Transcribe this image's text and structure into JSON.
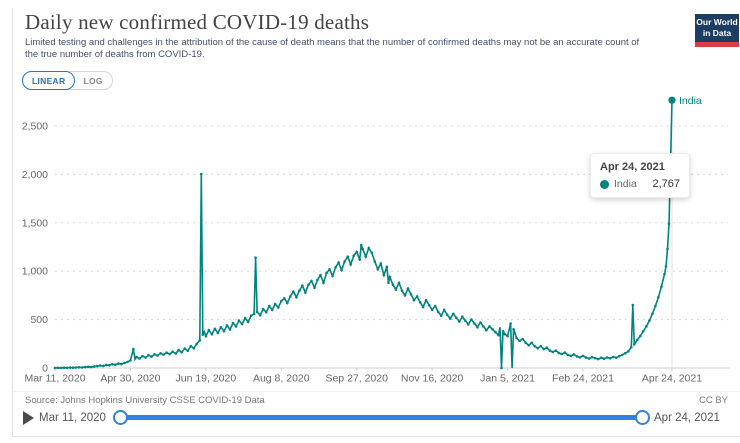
{
  "header": {
    "title": "Daily new confirmed COVID-19 deaths",
    "subtitle": "Limited testing and challenges in the attribution of the cause of death means that the number of confirmed deaths may not be an accurate count of the true number of deaths from COVID-19.",
    "logo": {
      "line1": "Our World",
      "line2": "in Data"
    }
  },
  "toolbar": {
    "linear_label": "LINEAR",
    "log_label": "LOG",
    "selected": "LINEAR"
  },
  "tooltip": {
    "date": "Apr 24, 2021",
    "series": "India",
    "value": "2,767"
  },
  "end_label": "India",
  "footer": {
    "source": "Source: Johns Hopkins University CSSE COVID-19 Data",
    "license": "CC BY"
  },
  "timeline": {
    "start_label": "Mar 11, 2020",
    "end_label": "Apr 24, 2021"
  },
  "colors": {
    "series": "#00847e",
    "accent_blue": "#2573ba",
    "slider_blue": "#2f80e7",
    "logo_navy": "#1d3d63",
    "logo_red": "#dc3e43",
    "grid": "#d8d8d8",
    "axis": "#cccccc",
    "tick_text": "#666666"
  },
  "chart_data": {
    "type": "line",
    "title": "Daily new confirmed COVID-19 deaths",
    "xlabel": "",
    "ylabel": "",
    "x_start_date": "Mar 11, 2020",
    "x_end_date": "Apr 24, 2021",
    "xlim_days": [
      0,
      409
    ],
    "ylim": [
      0,
      2500
    ],
    "grid": true,
    "yticks": [
      {
        "v": 0,
        "label": "0"
      },
      {
        "v": 500,
        "label": "500"
      },
      {
        "v": 1000,
        "label": "1,000"
      },
      {
        "v": 1500,
        "label": "1,500"
      },
      {
        "v": 2000,
        "label": "2,000"
      },
      {
        "v": 2500,
        "label": "2,500"
      }
    ],
    "xticks": [
      {
        "day": 0,
        "label": "Mar 11, 2020"
      },
      {
        "day": 50,
        "label": "Apr 30, 2020"
      },
      {
        "day": 100,
        "label": "Jun 19, 2020"
      },
      {
        "day": 150,
        "label": "Aug 8, 2020"
      },
      {
        "day": 200,
        "label": "Sep 27, 2020"
      },
      {
        "day": 250,
        "label": "Nov 16, 2020"
      },
      {
        "day": 300,
        "label": "Jan 5, 2021"
      },
      {
        "day": 350,
        "label": "Feb 24, 2021"
      },
      {
        "day": 409,
        "label": "Apr 24, 2021"
      }
    ],
    "hover_day": 409,
    "series": [
      {
        "name": "India",
        "color": "#00847e",
        "end_value": 2767,
        "notable_points": [
          {
            "date": "Jun 16, 2020",
            "day": 97,
            "value": 2003
          },
          {
            "date": "Jul 22, 2020",
            "day": 133,
            "value": 1140
          },
          {
            "date": "Sep 18, 2020",
            "day": 203,
            "value": 1270
          },
          {
            "date": "Apr 24, 2021",
            "day": 409,
            "value": 2767
          }
        ],
        "points": [
          [
            0,
            1
          ],
          [
            2,
            2
          ],
          [
            4,
            1
          ],
          [
            6,
            3
          ],
          [
            8,
            2
          ],
          [
            10,
            4
          ],
          [
            12,
            3
          ],
          [
            14,
            5
          ],
          [
            16,
            7
          ],
          [
            18,
            6
          ],
          [
            20,
            9
          ],
          [
            22,
            12
          ],
          [
            24,
            10
          ],
          [
            26,
            15
          ],
          [
            28,
            20
          ],
          [
            30,
            26
          ],
          [
            32,
            22
          ],
          [
            34,
            32
          ],
          [
            36,
            28
          ],
          [
            38,
            38
          ],
          [
            40,
            34
          ],
          [
            42,
            45
          ],
          [
            44,
            40
          ],
          [
            46,
            52
          ],
          [
            48,
            62
          ],
          [
            50,
            78
          ],
          [
            52,
            195
          ],
          [
            53,
            90
          ],
          [
            54,
            115
          ],
          [
            56,
            98
          ],
          [
            58,
            122
          ],
          [
            60,
            108
          ],
          [
            62,
            132
          ],
          [
            64,
            118
          ],
          [
            66,
            142
          ],
          [
            68,
            128
          ],
          [
            70,
            152
          ],
          [
            72,
            138
          ],
          [
            74,
            158
          ],
          [
            76,
            144
          ],
          [
            78,
            168
          ],
          [
            80,
            150
          ],
          [
            82,
            185
          ],
          [
            84,
            162
          ],
          [
            86,
            200
          ],
          [
            88,
            178
          ],
          [
            90,
            225
          ],
          [
            92,
            205
          ],
          [
            94,
            250
          ],
          [
            96,
            285
          ],
          [
            97,
            2003
          ],
          [
            98,
            345
          ],
          [
            99,
            375
          ],
          [
            100,
            330
          ],
          [
            102,
            390
          ],
          [
            104,
            348
          ],
          [
            106,
            405
          ],
          [
            108,
            362
          ],
          [
            110,
            420
          ],
          [
            112,
            380
          ],
          [
            114,
            440
          ],
          [
            116,
            398
          ],
          [
            118,
            465
          ],
          [
            120,
            430
          ],
          [
            122,
            490
          ],
          [
            124,
            455
          ],
          [
            126,
            515
          ],
          [
            128,
            475
          ],
          [
            130,
            540
          ],
          [
            132,
            560
          ],
          [
            133,
            1140
          ],
          [
            134,
            580
          ],
          [
            136,
            545
          ],
          [
            138,
            610
          ],
          [
            140,
            575
          ],
          [
            142,
            640
          ],
          [
            144,
            600
          ],
          [
            146,
            660
          ],
          [
            148,
            625
          ],
          [
            150,
            690
          ],
          [
            152,
            720
          ],
          [
            154,
            670
          ],
          [
            156,
            740
          ],
          [
            158,
            790
          ],
          [
            160,
            730
          ],
          [
            162,
            800
          ],
          [
            164,
            850
          ],
          [
            166,
            780
          ],
          [
            168,
            860
          ],
          [
            170,
            900
          ],
          [
            172,
            830
          ],
          [
            174,
            910
          ],
          [
            176,
            960
          ],
          [
            178,
            880
          ],
          [
            180,
            980
          ],
          [
            182,
            1020
          ],
          [
            184,
            950
          ],
          [
            186,
            1040
          ],
          [
            188,
            1090
          ],
          [
            190,
            1010
          ],
          [
            192,
            1100
          ],
          [
            194,
            1150
          ],
          [
            196,
            1070
          ],
          [
            198,
            1160
          ],
          [
            200,
            1200
          ],
          [
            202,
            1120
          ],
          [
            203,
            1270
          ],
          [
            204,
            1230
          ],
          [
            206,
            1150
          ],
          [
            208,
            1240
          ],
          [
            210,
            1190
          ],
          [
            212,
            1100
          ],
          [
            214,
            1020
          ],
          [
            216,
            1080
          ],
          [
            218,
            960
          ],
          [
            220,
            1045
          ],
          [
            221,
            880
          ],
          [
            222,
            940
          ],
          [
            224,
            860
          ],
          [
            226,
            810
          ],
          [
            228,
            880
          ],
          [
            230,
            800
          ],
          [
            232,
            750
          ],
          [
            234,
            820
          ],
          [
            236,
            760
          ],
          [
            238,
            700
          ],
          [
            240,
            740
          ],
          [
            242,
            680
          ],
          [
            244,
            630
          ],
          [
            246,
            700
          ],
          [
            248,
            650
          ],
          [
            250,
            600
          ],
          [
            252,
            640
          ],
          [
            254,
            580
          ],
          [
            256,
            540
          ],
          [
            258,
            600
          ],
          [
            260,
            550
          ],
          [
            262,
            510
          ],
          [
            264,
            560
          ],
          [
            266,
            520
          ],
          [
            268,
            480
          ],
          [
            270,
            530
          ],
          [
            272,
            490
          ],
          [
            274,
            450
          ],
          [
            276,
            500
          ],
          [
            278,
            460
          ],
          [
            280,
            420
          ],
          [
            282,
            470
          ],
          [
            284,
            430
          ],
          [
            286,
            390
          ],
          [
            288,
            430
          ],
          [
            290,
            400
          ],
          [
            292,
            370
          ],
          [
            294,
            340
          ],
          [
            295,
            420
          ],
          [
            296,
            0
          ],
          [
            297,
            390
          ],
          [
            298,
            350
          ],
          [
            300,
            330
          ],
          [
            302,
            460
          ],
          [
            303,
            0
          ],
          [
            304,
            400
          ],
          [
            306,
            310
          ],
          [
            308,
            280
          ],
          [
            310,
            300
          ],
          [
            312,
            260
          ],
          [
            314,
            235
          ],
          [
            316,
            260
          ],
          [
            318,
            225
          ],
          [
            320,
            205
          ],
          [
            322,
            225
          ],
          [
            324,
            195
          ],
          [
            326,
            210
          ],
          [
            328,
            180
          ],
          [
            330,
            165
          ],
          [
            332,
            180
          ],
          [
            334,
            155
          ],
          [
            336,
            145
          ],
          [
            338,
            160
          ],
          [
            340,
            135
          ],
          [
            342,
            125
          ],
          [
            344,
            140
          ],
          [
            346,
            120
          ],
          [
            348,
            110
          ],
          [
            350,
            125
          ],
          [
            352,
            108
          ],
          [
            354,
            98
          ],
          [
            356,
            112
          ],
          [
            358,
            102
          ],
          [
            360,
            92
          ],
          [
            362,
            105
          ],
          [
            364,
            96
          ],
          [
            366,
            108
          ],
          [
            368,
            100
          ],
          [
            370,
            114
          ],
          [
            372,
            106
          ],
          [
            374,
            122
          ],
          [
            376,
            135
          ],
          [
            378,
            152
          ],
          [
            380,
            172
          ],
          [
            382,
            215
          ],
          [
            383,
            650
          ],
          [
            384,
            245
          ],
          [
            386,
            290
          ],
          [
            388,
            330
          ],
          [
            390,
            380
          ],
          [
            392,
            430
          ],
          [
            394,
            490
          ],
          [
            396,
            560
          ],
          [
            398,
            640
          ],
          [
            400,
            730
          ],
          [
            402,
            840
          ],
          [
            404,
            970
          ],
          [
            405,
            1050
          ],
          [
            406,
            1230
          ],
          [
            407,
            1490
          ],
          [
            408,
            2100
          ],
          [
            409,
            2767
          ]
        ]
      }
    ]
  }
}
